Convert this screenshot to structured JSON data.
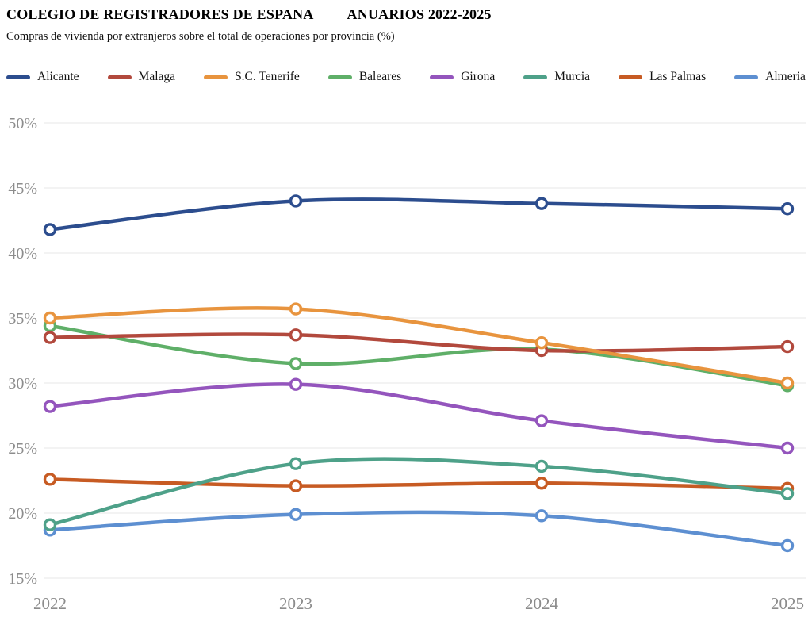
{
  "header": {
    "title_main": "COLEGIO DE REGISTRADORES DE ESPANA",
    "title_right": "ANUARIOS 2022-2025",
    "subtitle": "Compras de vivienda por extranjeros sobre el total de operaciones por provincia (%)"
  },
  "chart_data": {
    "type": "line",
    "x": [
      "2022",
      "2023",
      "2024",
      "2025"
    ],
    "series": [
      {
        "name": "Alicante",
        "color": "#2c4d8e",
        "values": [
          41.8,
          44.0,
          43.8,
          43.4
        ]
      },
      {
        "name": "Malaga",
        "color": "#b2493d",
        "values": [
          33.5,
          33.7,
          32.5,
          32.8
        ]
      },
      {
        "name": "S.C. Tenerife",
        "color": "#e8943e",
        "values": [
          35.0,
          35.7,
          33.1,
          30.0
        ]
      },
      {
        "name": "Baleares",
        "color": "#5faf68",
        "values": [
          34.4,
          31.5,
          32.6,
          29.8
        ]
      },
      {
        "name": "Girona",
        "color": "#9455bd",
        "values": [
          28.2,
          29.9,
          27.1,
          25.0
        ]
      },
      {
        "name": "Murcia",
        "color": "#4ea189",
        "values": [
          19.1,
          23.8,
          23.6,
          21.5
        ]
      },
      {
        "name": "Las Palmas",
        "color": "#c75b23",
        "values": [
          22.6,
          22.1,
          22.3,
          21.9
        ]
      },
      {
        "name": "Almeria",
        "color": "#5d8fd1",
        "values": [
          18.7,
          19.9,
          19.8,
          17.5
        ]
      }
    ],
    "ylim": [
      15,
      50
    ],
    "ytick_step": 5,
    "ytick_suffix": "%",
    "grid": true,
    "legend_position": "top",
    "marker": "open-circle",
    "tick_color": "#8c8c8c",
    "grid_color": "#e7e7e7"
  }
}
